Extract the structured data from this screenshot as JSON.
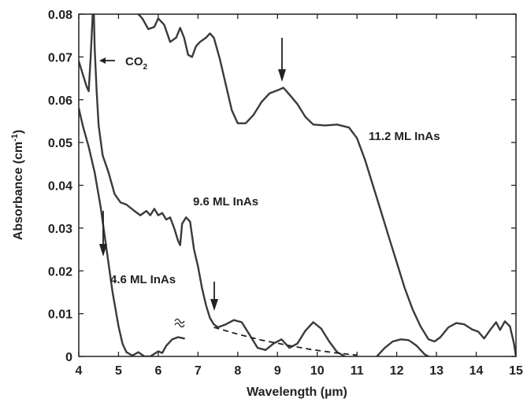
{
  "chart_data": {
    "type": "line",
    "xlabel": "Wavelength (µm)",
    "ylabel_main": "Absorbance (cm",
    "ylabel_sup": "-1",
    "ylabel_close": ")",
    "xlim": [
      4,
      15
    ],
    "ylim": [
      0,
      0.08
    ],
    "x_ticks": [
      "4",
      "5",
      "6",
      "7",
      "8",
      "9",
      "10",
      "11",
      "12",
      "13",
      "14",
      "15"
    ],
    "y_ticks": [
      "0",
      "0.01",
      "0.02",
      "0.03",
      "0.04",
      "0.05",
      "0.06",
      "0.07",
      "0.08"
    ],
    "grid": false,
    "series": [
      {
        "name": "11.2 ML InAs",
        "values": [
          [
            4.0,
            0.069
          ],
          [
            4.2,
            0.064
          ],
          [
            4.25,
            0.062
          ],
          [
            4.32,
            0.078
          ],
          [
            4.35,
            0.08
          ]
        ],
        "values2": [
          [
            4.38,
            0.08
          ],
          [
            4.42,
            0.064
          ],
          [
            4.5,
            0.055
          ],
          [
            4.6,
            0.048
          ]
        ],
        "main": [
          [
            4.42,
            0.068
          ],
          [
            5.5,
            0.08
          ],
          [
            5.3,
            0.08
          ],
          [
            5.4,
            0.08
          ],
          [
            5.5,
            0.08
          ],
          [
            5.6,
            0.08
          ],
          [
            5.7,
            0.079
          ],
          [
            5.8,
            0.08
          ],
          [
            6.0,
            0.08
          ],
          [
            6.1,
            0.079
          ],
          [
            6.3,
            0.0735
          ],
          [
            6.45,
            0.0745
          ],
          [
            6.55,
            0.0765
          ],
          [
            6.62,
            0.075
          ],
          [
            6.75,
            0.07
          ],
          [
            6.85,
            0.07
          ],
          [
            6.95,
            0.073
          ],
          [
            7.1,
            0.0735
          ],
          [
            7.25,
            0.0755
          ],
          [
            7.35,
            0.0745
          ],
          [
            7.5,
            0.07
          ],
          [
            7.65,
            0.064
          ],
          [
            7.8,
            0.058
          ],
          [
            7.95,
            0.055
          ],
          [
            8.1,
            0.054
          ],
          [
            8.3,
            0.0545
          ],
          [
            8.5,
            0.057
          ],
          [
            8.7,
            0.06
          ],
          [
            8.9,
            0.0615
          ],
          [
            9.1,
            0.0625
          ],
          [
            9.3,
            0.061
          ],
          [
            9.5,
            0.059
          ],
          [
            9.7,
            0.056
          ],
          [
            9.9,
            0.054
          ],
          [
            10.2,
            0.054
          ],
          [
            10.5,
            0.054
          ],
          [
            10.8,
            0.0535
          ],
          [
            11.0,
            0.051
          ],
          [
            11.2,
            0.046
          ],
          [
            11.4,
            0.04
          ],
          [
            11.6,
            0.034
          ],
          [
            11.8,
            0.028
          ],
          [
            12.0,
            0.022
          ],
          [
            12.2,
            0.016
          ],
          [
            12.4,
            0.011
          ],
          [
            12.6,
            0.007
          ],
          [
            12.8,
            0.004
          ],
          [
            12.95,
            0.0035
          ],
          [
            13.1,
            0.0045
          ],
          [
            13.3,
            0.0065
          ],
          [
            13.5,
            0.0075
          ],
          [
            13.7,
            0.0075
          ],
          [
            13.9,
            0.0065
          ],
          [
            14.1,
            0.006
          ],
          [
            14.25,
            0.004
          ],
          [
            14.35,
            0.006
          ],
          [
            14.5,
            0.008
          ],
          [
            14.6,
            0.006
          ],
          [
            14.7,
            0.008
          ],
          [
            14.85,
            0.007
          ],
          [
            14.95,
            0.003
          ],
          [
            15.0,
            0.0
          ]
        ]
      }
    ],
    "annotations": {
      "co2": "CO",
      "co2_sub": "2",
      "label_112": "11.2 ML InAs",
      "label_96": "9.6 ML InAs",
      "label_46": "4.6 ML InAs"
    }
  }
}
